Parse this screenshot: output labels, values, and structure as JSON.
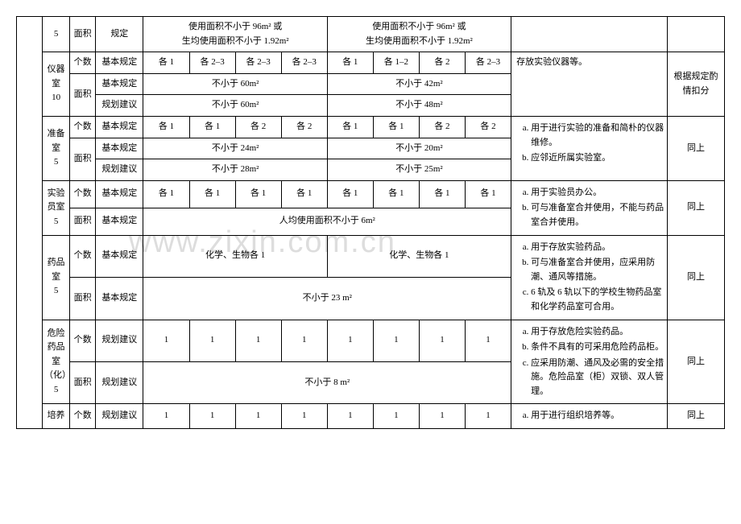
{
  "watermark": "www.zixin.com.cn",
  "rows": {
    "r1": {
      "num": "5",
      "label": "面积",
      "spec": "规定",
      "left": "使用面积不小于 96m² 或\n生均使用面积不小于 1.92m²",
      "right": "使用面积不小于 96m² 或\n生均使用面积不小于 1.92m²"
    },
    "instrument": {
      "title": "仪器室\n10",
      "count_label": "个数",
      "count_spec": "基本规定",
      "c": [
        "各 1",
        "各 2–3",
        "各 2–3",
        "各 2–3",
        "各 1",
        "各 1–2",
        "各 2",
        "各 2–3"
      ],
      "area_label": "面积",
      "a1_spec": "基本规定",
      "a1_left": "不小于 60m²",
      "a1_right": "不小于 42m²",
      "a2_spec": "规划建议",
      "a2_left": "不小于 60m²",
      "a2_right": "不小于 48m²",
      "desc": "存放实验仪器等。",
      "score": "根据规定酌情扣分"
    },
    "prep": {
      "title": "准备室\n5",
      "count_label": "个数",
      "count_spec": "基本规定",
      "c": [
        "各 1",
        "各 1",
        "各 2",
        "各 2",
        "各 1",
        "各 1",
        "各 2",
        "各 2"
      ],
      "area_label": "面积",
      "a1_spec": "基本规定",
      "a1_left": "不小于 24m²",
      "a1_right": "不小于 20m²",
      "a2_spec": "规划建议",
      "a2_left": "不小于 28m²",
      "a2_right": "不小于 25m²",
      "desc_a": "用于进行实验的准备和简朴的仪器维修。",
      "desc_b": "应邻近所属实验室。",
      "score": "同上"
    },
    "staff": {
      "title": "实验员室\n5",
      "count_label": "个数",
      "count_spec": "基本规定",
      "c": [
        "各 1",
        "各 1",
        "各 1",
        "各 1",
        "各 1",
        "各 1",
        "各 1",
        "各 1"
      ],
      "area_label": "面积",
      "area_spec": "基本规定",
      "area_all": "人均使用面积不小于 6m²",
      "desc_a": "用于实验员办公。",
      "desc_b": "可与准备室合并使用，不能与药品室合并使用。",
      "score": "同上"
    },
    "chem": {
      "title": "药品室\n5",
      "count_label": "个数",
      "count_spec": "基本规定",
      "c_left": "化学、生物各 1",
      "c_right": "化学、生物各 1",
      "area_label": "面积",
      "area_spec": "基本规定",
      "area_all": "不小于 23 m²",
      "desc_a": "用于存放实验药品。",
      "desc_b": "可与准备室合并使用，应采用防潮、通风等措施。",
      "desc_c": "6 轨及 6 轨以下的学校生物药品室和化学药品室可合用。",
      "score": "同上"
    },
    "danger": {
      "title": "危险药品室（化）\n5",
      "count_label": "个数",
      "count_spec": "规划建议",
      "c": [
        "1",
        "1",
        "1",
        "1",
        "1",
        "1",
        "1",
        "1"
      ],
      "area_label": "面积",
      "area_spec": "规划建议",
      "area_all": "不小于 8 m²",
      "desc_a": "用于存放危险实验药品。",
      "desc_b": "条件不具有的可采用危险药品柜。",
      "desc_c": "应采用防潮、通风及必需的安全措施。危险品室（柜）双锁、双人管理。",
      "score": "同上"
    },
    "culture": {
      "title": "培养",
      "count_label": "个数",
      "count_spec": "规划建议",
      "c": [
        "1",
        "1",
        "1",
        "1",
        "1",
        "1",
        "1",
        "1"
      ],
      "desc_a": "用于进行组织培养等。",
      "score": "同上"
    }
  }
}
